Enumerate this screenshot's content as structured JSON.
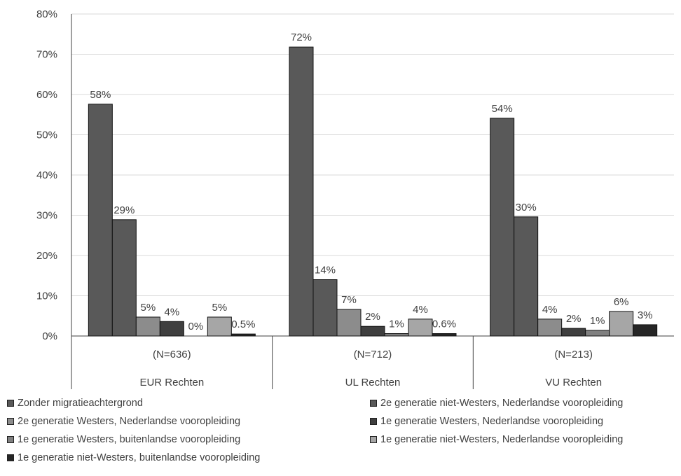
{
  "chart_data": {
    "type": "bar",
    "y_ticks": [
      "0%",
      "10%",
      "20%",
      "30%",
      "40%",
      "50%",
      "60%",
      "70%",
      "80%"
    ],
    "ylim": [
      0,
      80
    ],
    "grid": true,
    "legend_placement": "bottom",
    "groups": [
      {
        "n_label": "(N=636)",
        "label": "EUR Rechten"
      },
      {
        "n_label": "(N=712)",
        "label": "UL Rechten"
      },
      {
        "n_label": "(N=213)",
        "label": "VU Rechten"
      }
    ],
    "series": [
      {
        "name": "Zonder migratieachtergrond",
        "color": "#595959",
        "values": [
          57.6,
          71.8,
          54.1
        ],
        "labels": [
          "58%",
          "72%",
          "54%"
        ]
      },
      {
        "name": "2e generatie niet-Westers, Nederlandse vooropleiding",
        "color": "#595959",
        "values": [
          28.9,
          14.0,
          29.6
        ],
        "labels": [
          "29%",
          "14%",
          "30%"
        ]
      },
      {
        "name": "2e generatie Westers, Nederlandse vooropleiding",
        "color": "#8c8c8c",
        "values": [
          4.7,
          6.6,
          4.2
        ],
        "labels": [
          "5%",
          "7%",
          "4%"
        ]
      },
      {
        "name": "1e generatie Westers, Nederlandse vooropleiding",
        "color": "#3f3f3f",
        "values": [
          3.6,
          2.4,
          1.9
        ],
        "labels": [
          "4%",
          "2%",
          "2%"
        ]
      },
      {
        "name": "1e generatie Westers, buitenlandse vooropleiding",
        "color": "#808080",
        "values": [
          0,
          0.6,
          1.4
        ],
        "labels": [
          "0%",
          "1%",
          "1%"
        ]
      },
      {
        "name": "1e generatie niet-Westers, Nederlandse vooropleiding",
        "color": "#a6a6a6",
        "values": [
          4.7,
          4.2,
          6.1
        ],
        "labels": [
          "5%",
          "4%",
          "6%"
        ]
      },
      {
        "name": "1e generatie niet-Westers, buitenlandse vooropleiding",
        "color": "#262626",
        "values": [
          0.5,
          0.6,
          2.8
        ],
        "labels": [
          "0.5%",
          "0.6%",
          "3%"
        ]
      }
    ]
  }
}
